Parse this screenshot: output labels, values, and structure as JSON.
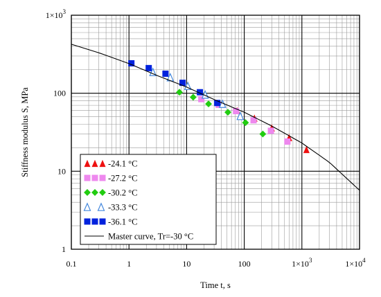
{
  "chart_data": {
    "type": "scatter",
    "xscale": "log",
    "yscale": "log",
    "xlim": [
      0.1,
      10000
    ],
    "ylim": [
      1,
      1000
    ],
    "xlabel": "Time t, s",
    "ylabel": "Stiffness modulus S, MPa",
    "grid": true,
    "legend_position": "bottom-left",
    "x_ticks": [
      {
        "v": 0.1,
        "base": "0.1",
        "sup": ""
      },
      {
        "v": 1,
        "base": "1",
        "sup": ""
      },
      {
        "v": 10,
        "base": "10",
        "sup": ""
      },
      {
        "v": 100,
        "base": "100",
        "sup": ""
      },
      {
        "v": 1000,
        "base": "1×10",
        "sup": "3"
      },
      {
        "v": 10000,
        "base": "1×10",
        "sup": "4"
      }
    ],
    "y_ticks": [
      {
        "v": 1,
        "base": "1",
        "sup": ""
      },
      {
        "v": 10,
        "base": "10",
        "sup": ""
      },
      {
        "v": 100,
        "base": "100",
        "sup": ""
      },
      {
        "v": 1000,
        "base": "1×10",
        "sup": "3"
      }
    ],
    "series": [
      {
        "name": "-24.1 °C",
        "marker": "triangle",
        "color": "#ee1111",
        "x": [
          75,
          150,
          300,
          600,
          1200
        ],
        "y": [
          60,
          48,
          36,
          27,
          19
        ]
      },
      {
        "name": "-27.2 °C",
        "marker": "square",
        "color": "#ee88ee",
        "x": [
          18,
          36,
          72,
          145,
          290,
          560
        ],
        "y": [
          84,
          71,
          59,
          45,
          33,
          24
        ]
      },
      {
        "name": "-30.2 °C",
        "marker": "diamond",
        "color": "#22cc11",
        "x": [
          7.5,
          13,
          24,
          52,
          105,
          210
        ],
        "y": [
          103,
          89,
          73,
          57,
          42,
          30
        ]
      },
      {
        "name": "-33.3 °C",
        "marker": "open-triangle",
        "color": "#4488dd",
        "x": [
          2.6,
          5.2,
          10.5,
          21,
          42,
          85
        ],
        "y": [
          187,
          160,
          124,
          96,
          73,
          51
        ]
      },
      {
        "name": "-36.1 °C",
        "marker": "square",
        "color": "#0022dd",
        "x": [
          1.1,
          2.2,
          4.3,
          8.5,
          17,
          34
        ],
        "y": [
          242,
          210,
          178,
          136,
          103,
          75
        ]
      },
      {
        "name": "Master curve, Tr=-30 °C",
        "marker": "line",
        "color": "#000000",
        "x": [
          0.1,
          0.3,
          1,
          3,
          10,
          30,
          100,
          300,
          1000,
          3000,
          10000
        ],
        "y": [
          425,
          330,
          240,
          170,
          120,
          83,
          57,
          38,
          23,
          13,
          5.7
        ]
      }
    ]
  }
}
